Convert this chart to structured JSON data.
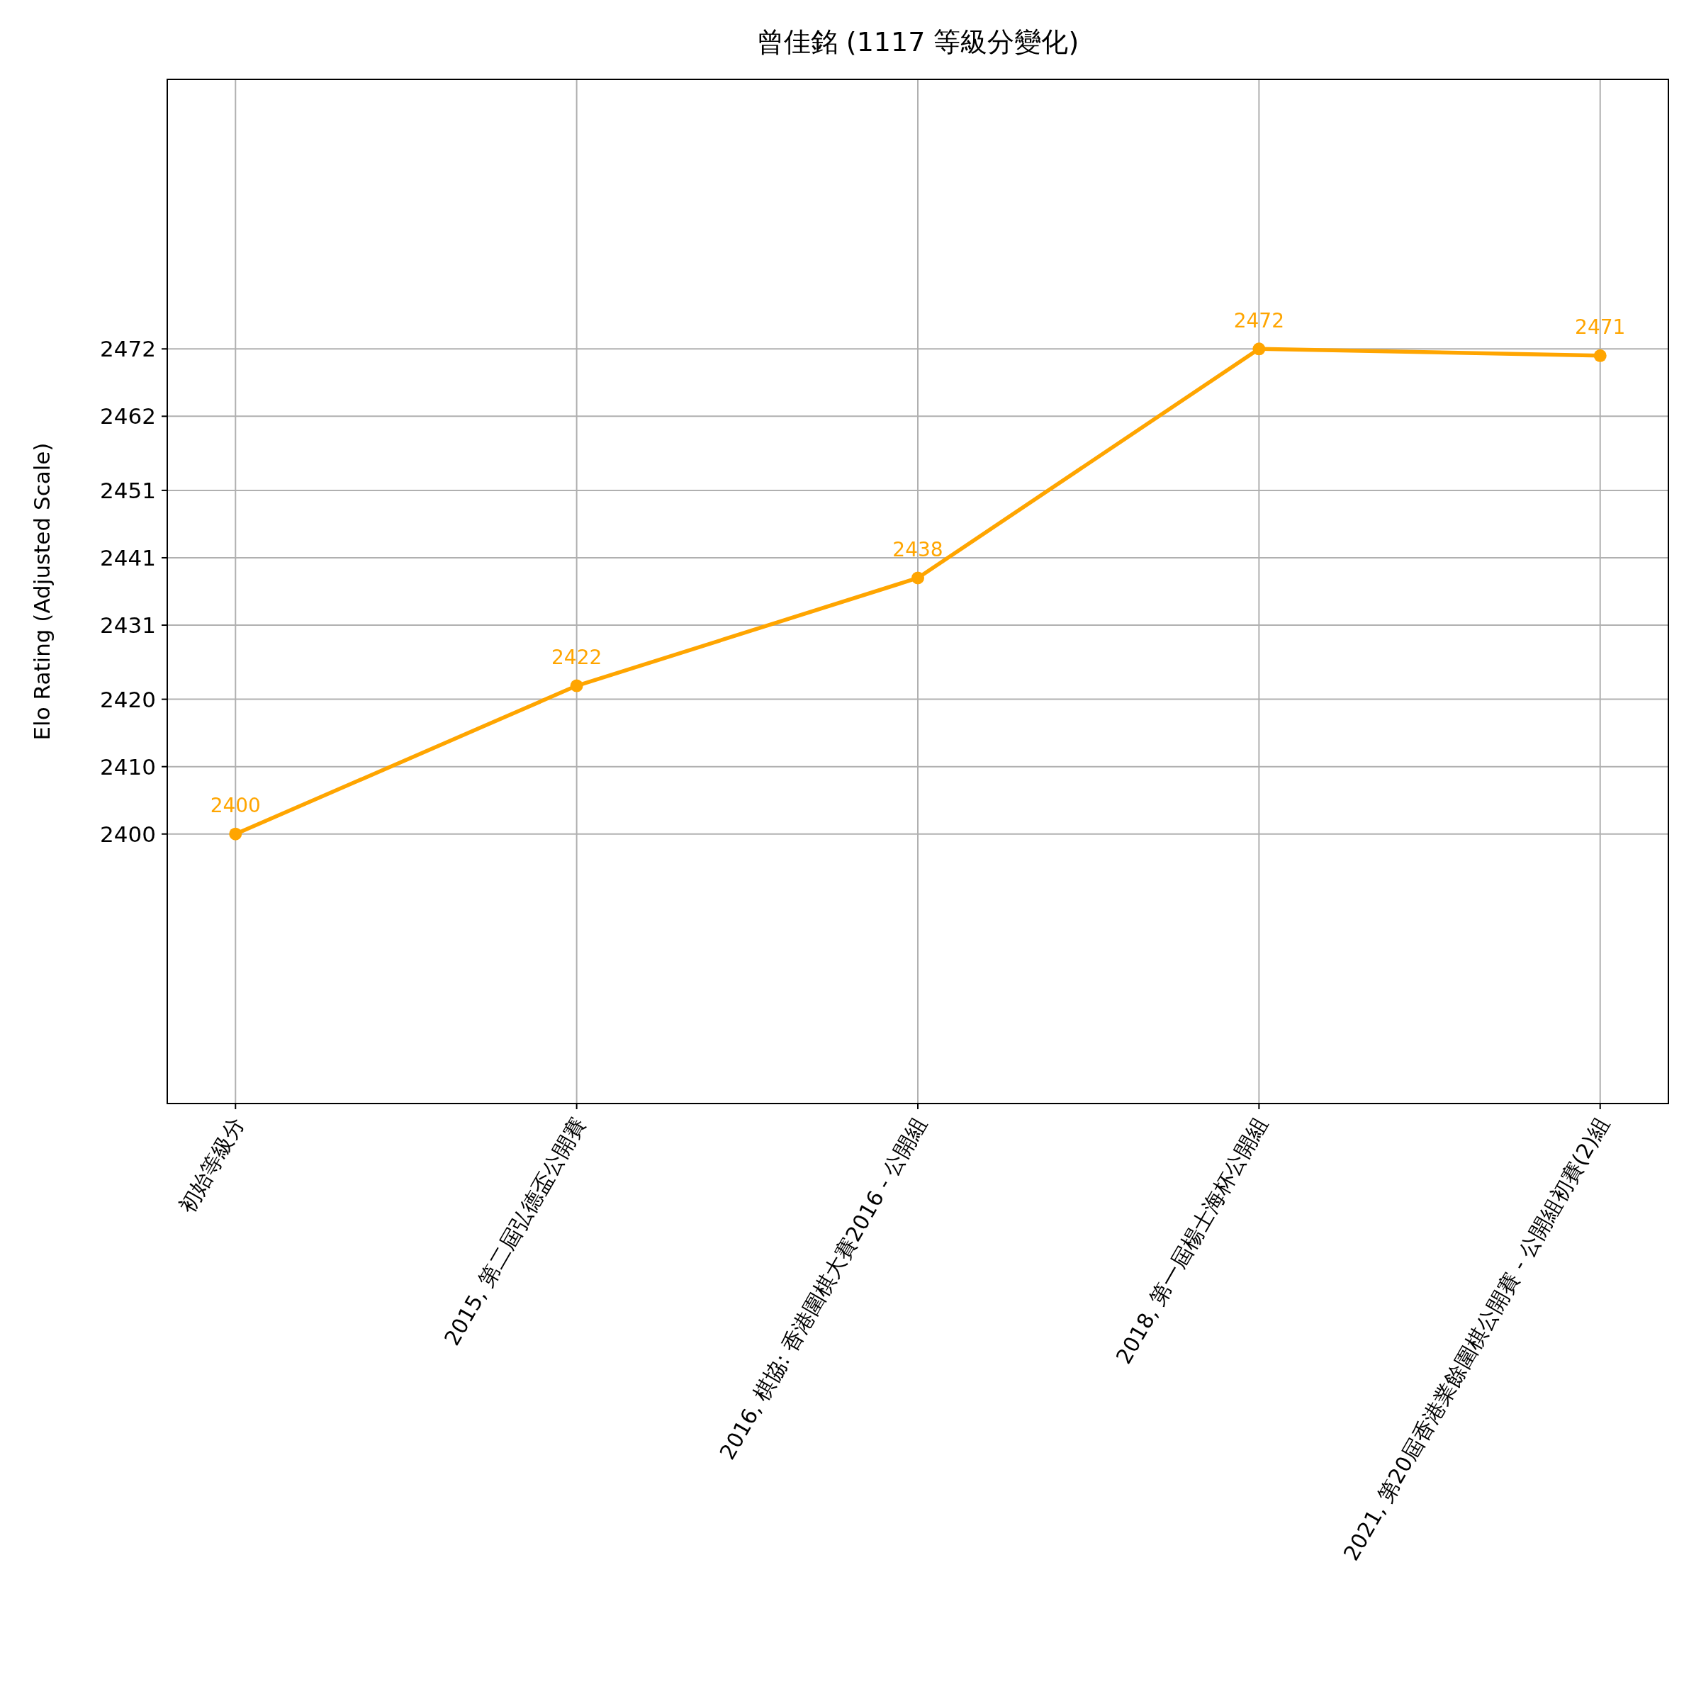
{
  "chart_data": {
    "type": "line",
    "title": "曾佳銘 (1117 等級分變化)",
    "ylabel": "Elo Rating (Adjusted Scale)",
    "categories": [
      "初始等級分",
      "2015, 第二屆弘德盃公開賽",
      "2016, 棋協: 香港圍棋大賽2016 - 公開組",
      "2018, 第一屆楊士海杯公開組",
      "2021, 第20屆香港業餘圍棋公開賽 - 公開組初賽(2)組"
    ],
    "series": [
      {
        "color": "#ffa500",
        "values": [
          2400,
          2422,
          2438,
          2472,
          2471
        ]
      }
    ],
    "ylim": [
      2360,
      2512
    ],
    "yticks": [
      2400,
      2410,
      2420,
      2431,
      2441,
      2451,
      2462,
      2472
    ],
    "grid": true,
    "marker": "circle",
    "line_style": "solid",
    "data_labels": true
  }
}
